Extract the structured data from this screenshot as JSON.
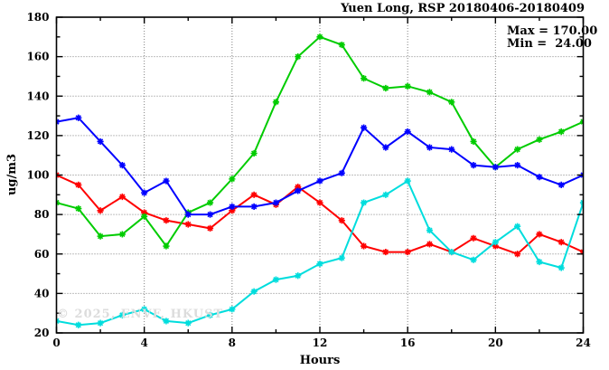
{
  "title": "Yuen Long, RSP 20180406-20180409",
  "watermark": "© 2025, ENVF, HKUST",
  "legend": {
    "max_label": "Max = 170.00",
    "min_label": "Min =  24.00"
  },
  "axes": {
    "x": {
      "label": "Hours",
      "min": 0,
      "max": 24,
      "major_ticks": [
        0,
        4,
        8,
        12,
        16,
        20,
        24
      ],
      "minor_tick_step": 2
    },
    "y": {
      "label": "ug/m3",
      "min": 20,
      "max": 180,
      "major_ticks": [
        20,
        40,
        60,
        80,
        100,
        120,
        140,
        160,
        180
      ],
      "minor_tick_step": 10
    }
  },
  "colors": {
    "red": "#ff0000",
    "green": "#00cc00",
    "blue": "#0000ff",
    "cyan": "#00dddd",
    "grid": "#7f7f7f",
    "axis": "#000000",
    "watermark": "#dcdcdc"
  },
  "chart_data": {
    "type": "line",
    "title": "Yuen Long, RSP 20180406-20180409",
    "xlabel": "Hours",
    "ylabel": "ug/m3",
    "xlim": [
      0,
      24
    ],
    "ylim": [
      20,
      180
    ],
    "grid": true,
    "grid_style": "dotted",
    "legend_position": "top-right-inside",
    "marker": "asterisk",
    "x": [
      0,
      1,
      2,
      3,
      4,
      5,
      6,
      7,
      8,
      9,
      10,
      11,
      12,
      13,
      14,
      15,
      16,
      17,
      18,
      19,
      20,
      21,
      22,
      23,
      24
    ],
    "series": [
      {
        "name": "red",
        "color": "#ff0000",
        "values": [
          100,
          95,
          82,
          89,
          81,
          77,
          75,
          73,
          82,
          90,
          85,
          94,
          86,
          77,
          64,
          61,
          61,
          65,
          61,
          68,
          64,
          60,
          70,
          66,
          61
        ]
      },
      {
        "name": "green",
        "color": "#00cc00",
        "values": [
          86,
          83,
          69,
          70,
          79,
          64,
          81,
          86,
          98,
          111,
          137,
          160,
          170,
          166,
          149,
          144,
          145,
          142,
          137,
          117,
          104,
          113,
          118,
          122,
          127
        ]
      },
      {
        "name": "blue",
        "color": "#0000ff",
        "values": [
          127,
          129,
          117,
          105,
          91,
          97,
          80,
          80,
          84,
          84,
          86,
          92,
          97,
          101,
          124,
          114,
          122,
          114,
          113,
          105,
          104,
          105,
          99,
          95,
          100
        ]
      },
      {
        "name": "cyan",
        "color": "#00dddd",
        "values": [
          26,
          24,
          25,
          29,
          32,
          26,
          25,
          29,
          32,
          41,
          47,
          49,
          55,
          58,
          86,
          90,
          97,
          72,
          61,
          57,
          66,
          74,
          56,
          53,
          86
        ]
      }
    ],
    "stats": {
      "max": 170.0,
      "min": 24.0
    }
  }
}
